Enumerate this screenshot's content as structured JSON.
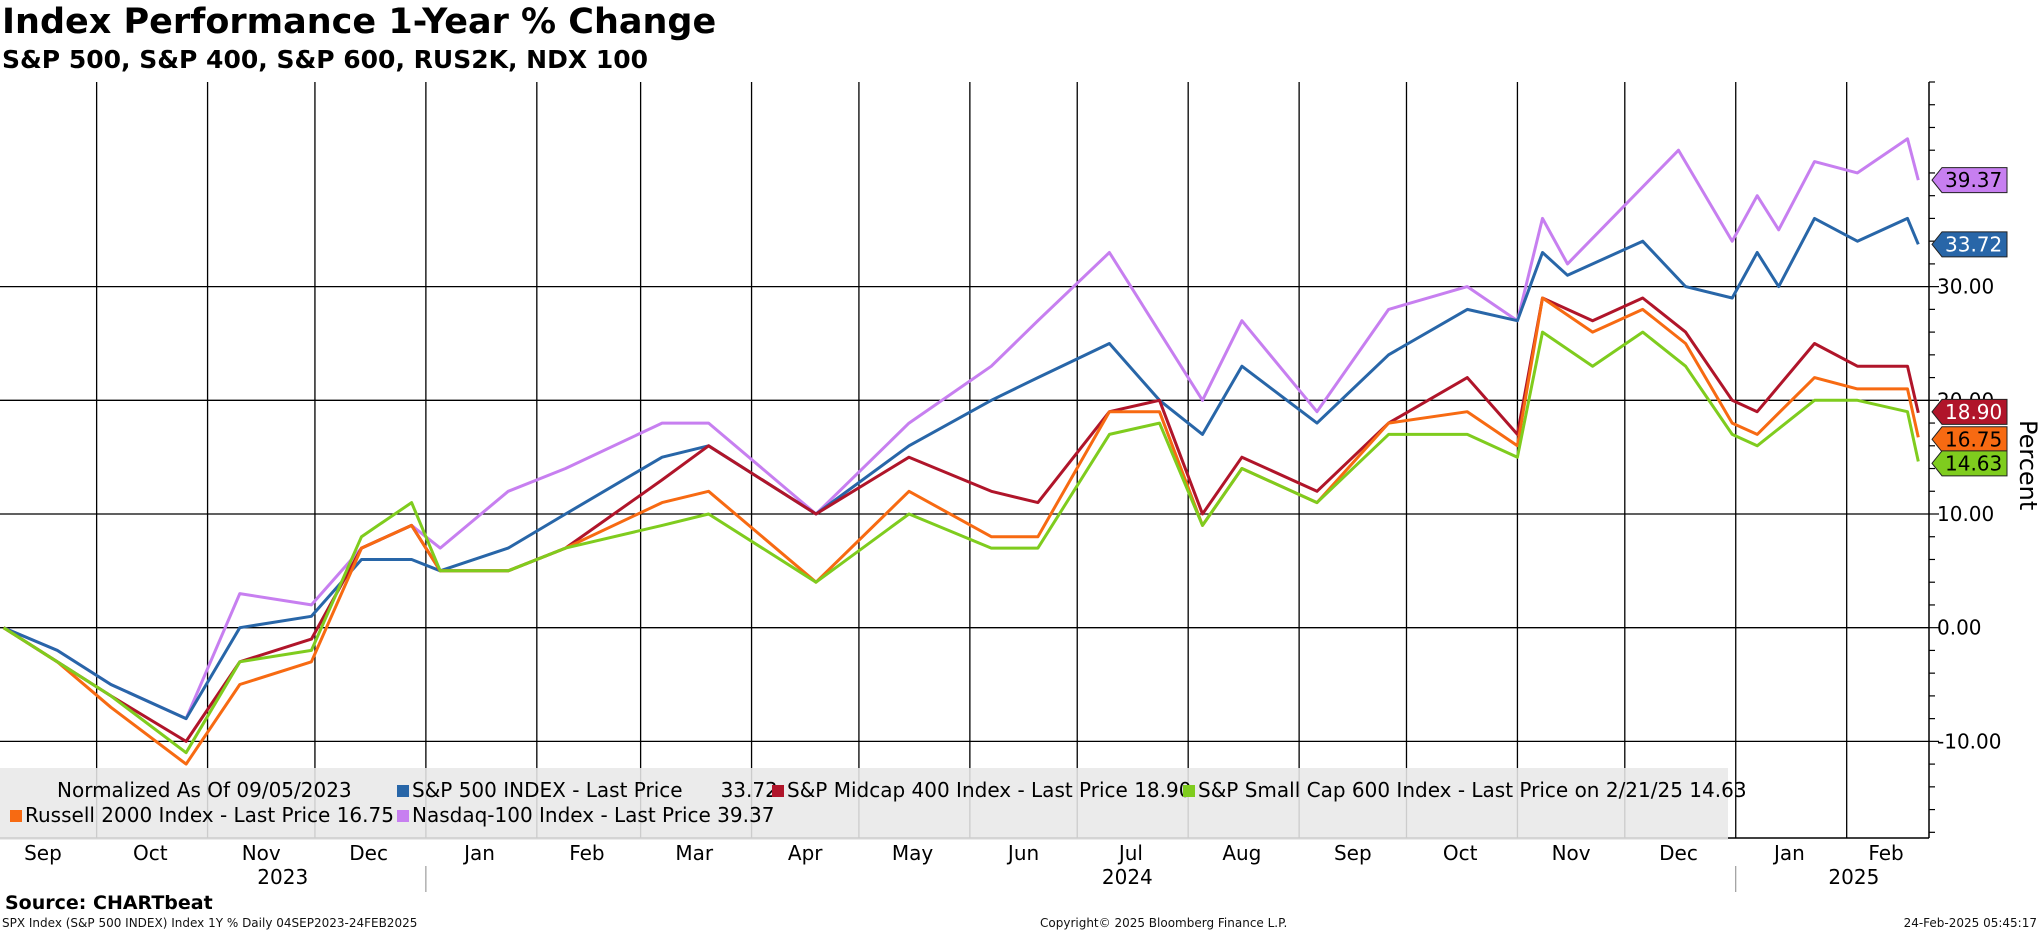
{
  "title": "Index Performance 1-Year % Change",
  "subtitle": "S&P 500, S&P 400, S&P 600, RUS2K, NDX 100",
  "source": "Source: CHARTbeat",
  "footer": {
    "left": "SPX Index (S&P 500 INDEX) Index 1Y % Daily 04SEP2023-24FEB2025",
    "center": "Copyright© 2025 Bloomberg Finance L.P.",
    "right": "24-Feb-2025 05:45:17"
  },
  "legend": {
    "normalized": "Normalized As Of 09/05/2023",
    "items": [
      {
        "key": "spx",
        "text": "S&P 500 INDEX - Last Price",
        "value": "33.72"
      },
      {
        "key": "mid",
        "text": "S&P Midcap 400 Index - Last Price 18.90"
      },
      {
        "key": "sml",
        "text": "S&P Small Cap 600 Index - Last Price on 2/21/25 14.63"
      },
      {
        "key": "rty",
        "text": "Russell 2000 Index - Last Price 16.75"
      },
      {
        "key": "ndx",
        "text": "Nasdaq-100 Index - Last Price 39.37"
      }
    ]
  },
  "colors": {
    "spx": "#2866a8",
    "mid": "#b0152a",
    "sml": "#7fcc1e",
    "rty": "#f76a12",
    "ndx": "#c77ff0"
  },
  "chart_data": {
    "type": "line",
    "ylabel": "Percent",
    "ylim": [
      -18.5,
      48
    ],
    "y_ticks": [
      -10,
      0,
      10,
      20,
      30
    ],
    "y_tick_labels": [
      "-10.00",
      "0.00",
      "10.00",
      "20.00",
      "30.00"
    ],
    "x_start": "2023-09-04",
    "x_end": "2025-02-24",
    "month_labels": [
      {
        "label": "Sep",
        "date": "2023-09-16"
      },
      {
        "label": "Oct",
        "date": "2023-10-16"
      },
      {
        "label": "Nov",
        "date": "2023-11-16"
      },
      {
        "label": "Dec",
        "date": "2023-12-16"
      },
      {
        "label": "Jan",
        "date": "2024-01-16"
      },
      {
        "label": "Feb",
        "date": "2024-02-15"
      },
      {
        "label": "Mar",
        "date": "2024-03-16"
      },
      {
        "label": "Apr",
        "date": "2024-04-16"
      },
      {
        "label": "May",
        "date": "2024-05-16"
      },
      {
        "label": "Jun",
        "date": "2024-06-16"
      },
      {
        "label": "Jul",
        "date": "2024-07-16"
      },
      {
        "label": "Aug",
        "date": "2024-08-16"
      },
      {
        "label": "Sep",
        "date": "2024-09-16"
      },
      {
        "label": "Oct",
        "date": "2024-10-16"
      },
      {
        "label": "Nov",
        "date": "2024-11-16"
      },
      {
        "label": "Dec",
        "date": "2024-12-16"
      },
      {
        "label": "Jan",
        "date": "2025-01-16"
      },
      {
        "label": "Feb",
        "date": "2025-02-12"
      }
    ],
    "year_labels": [
      {
        "label": "2023",
        "date": "2023-11-22"
      },
      {
        "label": "2024",
        "date": "2024-07-15"
      },
      {
        "label": "2025",
        "date": "2025-02-03"
      }
    ],
    "series": [
      {
        "key": "ndx",
        "last_label": "39.37",
        "x": [
          "2023-09-05",
          "2023-09-20",
          "2023-10-05",
          "2023-10-26",
          "2023-11-10",
          "2023-11-30",
          "2023-12-14",
          "2023-12-28",
          "2024-01-05",
          "2024-01-24",
          "2024-02-09",
          "2024-03-07",
          "2024-03-20",
          "2024-04-19",
          "2024-05-15",
          "2024-06-07",
          "2024-06-20",
          "2024-07-10",
          "2024-07-24",
          "2024-08-05",
          "2024-08-16",
          "2024-09-06",
          "2024-09-26",
          "2024-10-18",
          "2024-11-01",
          "2024-11-08",
          "2024-11-15",
          "2024-12-16",
          "2024-12-31",
          "2025-01-07",
          "2025-01-13",
          "2025-01-23",
          "2025-02-04",
          "2025-02-18",
          "2025-02-21"
        ],
        "y": [
          0,
          -2,
          -5,
          -8,
          3,
          2,
          7,
          9,
          7,
          12,
          14,
          18,
          18,
          10,
          18,
          23,
          27,
          33,
          26,
          20,
          27,
          19,
          28,
          30,
          27,
          36,
          32,
          42,
          34,
          38,
          35,
          41,
          40,
          43,
          39.37
        ]
      },
      {
        "key": "spx",
        "last_label": "33.72",
        "x": [
          "2023-09-05",
          "2023-09-20",
          "2023-10-05",
          "2023-10-26",
          "2023-11-10",
          "2023-11-30",
          "2023-12-14",
          "2023-12-28",
          "2024-01-05",
          "2024-01-24",
          "2024-02-09",
          "2024-03-07",
          "2024-03-20",
          "2024-04-19",
          "2024-05-15",
          "2024-06-07",
          "2024-06-20",
          "2024-07-10",
          "2024-07-24",
          "2024-08-05",
          "2024-08-16",
          "2024-09-06",
          "2024-09-26",
          "2024-10-18",
          "2024-11-01",
          "2024-11-08",
          "2024-11-15",
          "2024-12-06",
          "2024-12-18",
          "2024-12-31",
          "2025-01-07",
          "2025-01-13",
          "2025-01-23",
          "2025-02-04",
          "2025-02-18",
          "2025-02-21"
        ],
        "y": [
          0,
          -2,
          -5,
          -8,
          0,
          1,
          6,
          6,
          5,
          7,
          10,
          15,
          16,
          10,
          16,
          20,
          22,
          25,
          20,
          17,
          23,
          18,
          24,
          28,
          27,
          33,
          31,
          34,
          30,
          29,
          33,
          30,
          36,
          34,
          36,
          33.72
        ]
      },
      {
        "key": "mid",
        "last_label": "18.90",
        "x": [
          "2023-09-05",
          "2023-09-20",
          "2023-10-05",
          "2023-10-26",
          "2023-11-10",
          "2023-11-30",
          "2023-12-14",
          "2023-12-28",
          "2024-01-05",
          "2024-01-24",
          "2024-02-09",
          "2024-03-07",
          "2024-03-20",
          "2024-04-19",
          "2024-05-15",
          "2024-06-07",
          "2024-06-20",
          "2024-07-10",
          "2024-07-24",
          "2024-08-05",
          "2024-08-16",
          "2024-09-06",
          "2024-09-26",
          "2024-10-18",
          "2024-11-01",
          "2024-11-08",
          "2024-11-22",
          "2024-12-06",
          "2024-12-18",
          "2024-12-31",
          "2025-01-07",
          "2025-01-23",
          "2025-02-04",
          "2025-02-18",
          "2025-02-21"
        ],
        "y": [
          0,
          -3,
          -6,
          -10,
          -3,
          -1,
          7,
          9,
          5,
          5,
          7,
          13,
          16,
          10,
          15,
          12,
          11,
          19,
          20,
          10,
          15,
          12,
          18,
          22,
          17,
          29,
          27,
          29,
          26,
          20,
          19,
          25,
          23,
          23,
          18.9
        ]
      },
      {
        "key": "rty",
        "last_label": "16.75",
        "x": [
          "2023-09-05",
          "2023-09-20",
          "2023-10-05",
          "2023-10-26",
          "2023-11-10",
          "2023-11-30",
          "2023-12-14",
          "2023-12-28",
          "2024-01-05",
          "2024-01-24",
          "2024-02-09",
          "2024-03-07",
          "2024-03-20",
          "2024-04-19",
          "2024-05-15",
          "2024-06-07",
          "2024-06-20",
          "2024-07-10",
          "2024-07-24",
          "2024-08-05",
          "2024-08-16",
          "2024-09-06",
          "2024-09-26",
          "2024-10-18",
          "2024-11-01",
          "2024-11-08",
          "2024-11-22",
          "2024-12-06",
          "2024-12-18",
          "2024-12-31",
          "2025-01-07",
          "2025-01-23",
          "2025-02-04",
          "2025-02-18",
          "2025-02-21"
        ],
        "y": [
          0,
          -3,
          -7,
          -12,
          -5,
          -3,
          7,
          9,
          5,
          5,
          7,
          11,
          12,
          4,
          12,
          8,
          8,
          19,
          19,
          9,
          14,
          11,
          18,
          19,
          16,
          29,
          26,
          28,
          25,
          18,
          17,
          22,
          21,
          21,
          16.75
        ]
      },
      {
        "key": "sml",
        "last_label": "14.63",
        "x": [
          "2023-09-05",
          "2023-09-20",
          "2023-10-05",
          "2023-10-26",
          "2023-11-10",
          "2023-11-30",
          "2023-12-14",
          "2023-12-28",
          "2024-01-05",
          "2024-01-24",
          "2024-02-09",
          "2024-03-07",
          "2024-03-20",
          "2024-04-19",
          "2024-05-15",
          "2024-06-07",
          "2024-06-20",
          "2024-07-10",
          "2024-07-24",
          "2024-08-05",
          "2024-08-16",
          "2024-09-06",
          "2024-09-26",
          "2024-10-18",
          "2024-11-01",
          "2024-11-08",
          "2024-11-22",
          "2024-12-06",
          "2024-12-18",
          "2024-12-31",
          "2025-01-07",
          "2025-01-23",
          "2025-02-04",
          "2025-02-18",
          "2025-02-21"
        ],
        "y": [
          0,
          -3,
          -6,
          -11,
          -3,
          -2,
          8,
          11,
          5,
          5,
          7,
          9,
          10,
          4,
          10,
          7,
          7,
          17,
          18,
          9,
          14,
          11,
          17,
          17,
          15,
          26,
          23,
          26,
          23,
          17,
          16,
          20,
          20,
          19,
          14.63
        ]
      }
    ]
  }
}
